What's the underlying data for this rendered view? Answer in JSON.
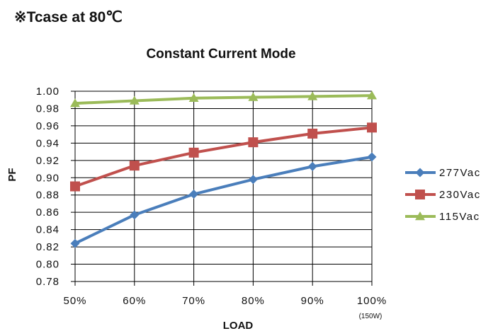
{
  "header_note": "※Tcase at 80℃",
  "chart_data": {
    "type": "line",
    "title": "Constant Current Mode",
    "xlabel": "LOAD",
    "ylabel": "PF",
    "categories": [
      "50%",
      "60%",
      "70%",
      "80%",
      "90%",
      "100%"
    ],
    "x_sublabel": "(150W)",
    "ylim": [
      0.78,
      1.0
    ],
    "yticks": [
      "0.78",
      "0.80",
      "0.82",
      "0.84",
      "0.86",
      "0.88",
      "0.90",
      "0.92",
      "0.94",
      "0.96",
      "0.98",
      "1.00"
    ],
    "grid": true,
    "legend_position": "right",
    "series": [
      {
        "name": "277Vac",
        "color": "#4a7ebb",
        "marker": "diamond",
        "values": [
          0.824,
          0.857,
          0.881,
          0.898,
          0.913,
          0.924
        ]
      },
      {
        "name": "230Vac",
        "color": "#c0504d",
        "marker": "square",
        "values": [
          0.89,
          0.914,
          0.929,
          0.941,
          0.951,
          0.958
        ]
      },
      {
        "name": "115Vac",
        "color": "#9bbb59",
        "marker": "triangle",
        "values": [
          0.986,
          0.989,
          0.992,
          0.993,
          0.994,
          0.995
        ]
      }
    ]
  }
}
